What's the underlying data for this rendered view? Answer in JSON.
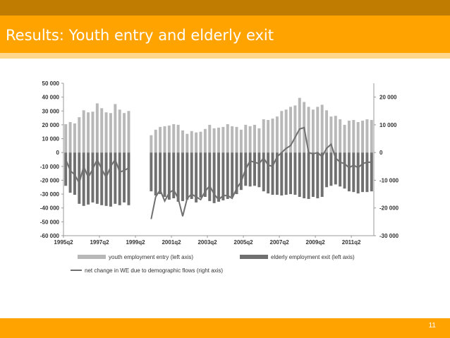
{
  "slide": {
    "title": "Results: Youth entry and elderly exit",
    "page_number": "11"
  },
  "colors": {
    "header_dark": "#bf7c00",
    "header": "#ffa300",
    "accent": "#ffd68a",
    "youth_bar": "#b8b8b8",
    "elderly_bar": "#707070",
    "net_line": "#707070"
  },
  "chart_data": {
    "type": "bar",
    "categories": [
      "1995q2",
      "1995q3",
      "1995q4",
      "1996q1",
      "1996q2",
      "1996q3",
      "1996q4",
      "1997q1",
      "1997q2",
      "1997q3",
      "1997q4",
      "1998q1",
      "1998q2",
      "1998q3",
      "1998q4",
      "1999q1",
      "1999q2",
      "1999q3",
      "1999q4",
      "2000q1",
      "2000q2",
      "2000q3",
      "2000q4",
      "2001q1",
      "2001q2",
      "2001q3",
      "2001q4",
      "2002q1",
      "2002q2",
      "2002q3",
      "2002q4",
      "2003q1",
      "2003q2",
      "2003q3",
      "2003q4",
      "2004q1",
      "2004q2",
      "2004q3",
      "2004q4",
      "2005q1",
      "2005q2",
      "2005q3",
      "2005q4",
      "2006q1",
      "2006q2",
      "2006q3",
      "2006q4",
      "2007q1",
      "2007q2",
      "2007q3",
      "2007q4",
      "2008q1",
      "2008q2",
      "2008q3",
      "2008q4",
      "2009q1",
      "2009q2",
      "2009q3",
      "2009q4",
      "2010q1",
      "2010q2",
      "2010q3",
      "2010q4",
      "2011q1",
      "2011q2",
      "2011q3",
      "2011q4",
      "2012q1",
      "2012q2"
    ],
    "x_tick_labels": [
      "1995q2",
      "1997q2",
      "1999q2",
      "2001q2",
      "2003q2",
      "2005q2",
      "2007q2",
      "2009q2",
      "2011q2"
    ],
    "series": [
      {
        "name": "youth employment entry (left axis)",
        "axis": "left",
        "type": "bar",
        "values": [
          20500,
          22000,
          21000,
          25500,
          30500,
          29000,
          29500,
          35500,
          32000,
          29000,
          28500,
          35000,
          31000,
          28500,
          30000,
          null,
          null,
          null,
          null,
          12500,
          16500,
          18500,
          19000,
          19500,
          20500,
          20000,
          16000,
          13500,
          15500,
          14500,
          15000,
          17000,
          20000,
          17500,
          18000,
          18500,
          20500,
          19000,
          18500,
          16500,
          20000,
          19000,
          20000,
          17500,
          24000,
          23500,
          24500,
          26000,
          30000,
          31000,
          33000,
          34000,
          39500,
          36500,
          33000,
          31000,
          33000,
          34500,
          30500,
          26000,
          26500,
          24000,
          20000,
          23000,
          23500,
          22000,
          23000,
          24000,
          23500
        ]
      },
      {
        "name": "elderly employment exit (left axis)",
        "axis": "left",
        "type": "bar",
        "values": [
          -24000,
          -29000,
          -30500,
          -37000,
          -38500,
          -37500,
          -36000,
          -37000,
          -38000,
          -38500,
          -39000,
          -37000,
          -38000,
          -36000,
          -38000,
          null,
          null,
          null,
          null,
          -28000,
          -31000,
          -30000,
          -32000,
          -34000,
          -33000,
          -35500,
          -35000,
          -34000,
          -33500,
          -36000,
          -32500,
          -32000,
          -35000,
          -36500,
          -35500,
          -34500,
          -33500,
          -32000,
          -30000,
          -27000,
          -24000,
          -24500,
          -24000,
          -25000,
          -28000,
          -29500,
          -30500,
          -30500,
          -31000,
          -30500,
          -30000,
          -30500,
          -32000,
          -33000,
          -33500,
          -32000,
          -33000,
          -32000,
          -25000,
          -24000,
          -23000,
          -24500,
          -26000,
          -28000,
          -28500,
          -29500,
          -28500,
          -28500,
          -28000
        ]
      },
      {
        "name": "net change in WE due to demographic flows (right axis)",
        "axis": "right",
        "type": "line",
        "values": [
          -2500,
          -6500,
          -8000,
          -11000,
          -5000,
          -9000,
          -6000,
          -2500,
          -6000,
          -9000,
          -5000,
          -2500,
          -7000,
          -6500,
          -5500,
          null,
          null,
          null,
          null,
          -24000,
          -16000,
          -13500,
          -17500,
          -14500,
          -13500,
          -16500,
          -23000,
          -16500,
          -15000,
          -16000,
          -17000,
          -14000,
          -12000,
          -15000,
          -17000,
          -15500,
          -15500,
          -16500,
          -13000,
          -10500,
          -6000,
          -3000,
          -3500,
          -4000,
          -2000,
          -4500,
          -5000,
          -1500,
          0,
          1500,
          2500,
          5500,
          8500,
          9000,
          0,
          -500,
          0,
          -1500,
          1500,
          3000,
          -2000,
          -3500,
          -4000,
          -5500,
          -4500,
          -5500,
          -4000,
          -3500,
          -3500
        ]
      }
    ],
    "y_left": {
      "ticks": [
        "50 000",
        "40 000",
        "30 000",
        "20 000",
        "10 000",
        "0",
        "-10 000",
        "-20 000",
        "-30 000",
        "-40 000",
        "-50 000",
        "-60 000"
      ],
      "range": [
        -60000,
        50000
      ]
    },
    "y_right": {
      "ticks": [
        "20 000",
        "10 000",
        "0",
        "-10 000",
        "-20 000",
        "-30 000"
      ],
      "range": [
        -30000,
        25000
      ]
    },
    "legend_position": "bottom",
    "grid": false
  }
}
